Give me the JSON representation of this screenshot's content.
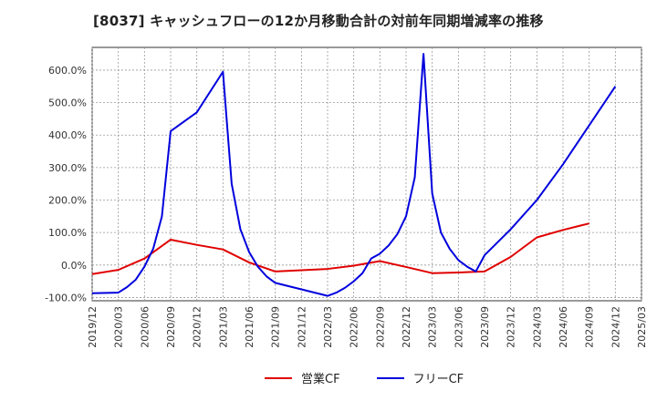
{
  "chart_data": {
    "type": "line",
    "title": "[8037]  キャッシュフローの12か月移動合計の対前年同期増減率の推移",
    "xlabel": "",
    "ylabel": "",
    "x_ticks": [
      "2019/12",
      "2020/03",
      "2020/06",
      "2020/09",
      "2020/12",
      "2021/03",
      "2021/06",
      "2021/09",
      "2021/12",
      "2022/03",
      "2022/06",
      "2022/09",
      "2022/12",
      "2023/03",
      "2023/06",
      "2023/09",
      "2023/12",
      "2024/03",
      "2024/06",
      "2024/09",
      "2024/12",
      "2025/03"
    ],
    "y_ticks": [
      "-100.0%",
      "0.0%",
      "100.0%",
      "200.0%",
      "300.0%",
      "400.0%",
      "500.0%",
      "600.0%"
    ],
    "ylim": [
      -110,
      670
    ],
    "grid": true,
    "legend_position": "bottom",
    "series": [
      {
        "name": "営業CF",
        "color": "#e00000",
        "points": [
          [
            "2019/12",
            -28
          ],
          [
            "2020/03",
            -15
          ],
          [
            "2020/06",
            20
          ],
          [
            "2020/09",
            78
          ],
          [
            "2020/12",
            62
          ],
          [
            "2021/03",
            48
          ],
          [
            "2021/06",
            8
          ],
          [
            "2021/09",
            -20
          ],
          [
            "2021/12",
            -16
          ],
          [
            "2022/03",
            -12
          ],
          [
            "2022/06",
            -2
          ],
          [
            "2022/09",
            12
          ],
          [
            "2022/12",
            -6
          ],
          [
            "2023/03",
            -25
          ],
          [
            "2023/06",
            -23
          ],
          [
            "2023/09",
            -20
          ],
          [
            "2023/12",
            25
          ],
          [
            "2024/03",
            85
          ],
          [
            "2024/06",
            108
          ],
          [
            "2024/09",
            128
          ]
        ]
      },
      {
        "name": "フリーCF",
        "color": "#0000dd",
        "points": [
          [
            "2019/12",
            -87
          ],
          [
            "2020/03",
            -85
          ],
          [
            "2020/04",
            -68
          ],
          [
            "2020/05",
            -45
          ],
          [
            "2020/06",
            -5
          ],
          [
            "2020/07",
            50
          ],
          [
            "2020/08",
            150
          ],
          [
            "2020/09",
            412
          ],
          [
            "2020/12",
            470
          ],
          [
            "2021/03",
            595
          ],
          [
            "2021/04",
            250
          ],
          [
            "2021/05",
            110
          ],
          [
            "2021/06",
            40
          ],
          [
            "2021/07",
            -5
          ],
          [
            "2021/08",
            -35
          ],
          [
            "2021/09",
            -55
          ],
          [
            "2021/12",
            -75
          ],
          [
            "2022/03",
            -95
          ],
          [
            "2022/04",
            -85
          ],
          [
            "2022/05",
            -70
          ],
          [
            "2022/06",
            -50
          ],
          [
            "2022/07",
            -25
          ],
          [
            "2022/08",
            20
          ],
          [
            "2022/09",
            35
          ],
          [
            "2022/10",
            60
          ],
          [
            "2022/11",
            95
          ],
          [
            "2022/12",
            150
          ],
          [
            "2023/01",
            270
          ],
          [
            "2023/02",
            650
          ],
          [
            "2023/03",
            220
          ],
          [
            "2023/04",
            100
          ],
          [
            "2023/05",
            50
          ],
          [
            "2023/06",
            15
          ],
          [
            "2023/07",
            -5
          ],
          [
            "2023/08",
            -20
          ],
          [
            "2023/09",
            30
          ],
          [
            "2023/12",
            110
          ],
          [
            "2024/03",
            200
          ],
          [
            "2024/06",
            310
          ],
          [
            "2024/09",
            430
          ],
          [
            "2024/12",
            550
          ]
        ]
      }
    ]
  }
}
